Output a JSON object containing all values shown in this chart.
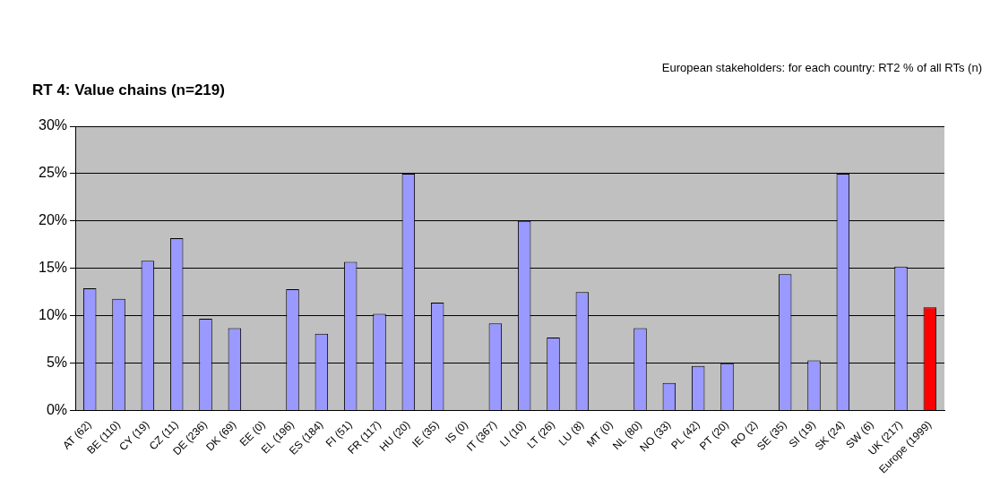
{
  "chart_data": {
    "type": "bar",
    "title": "RT 4: Value chains (n=219)",
    "annotations": [
      "European stakeholders: for each country: RT2 % of all RTs (n)"
    ],
    "categories": [
      "AT (62)",
      "BE (110)",
      "CY (19)",
      "CZ (11)",
      "DE (236)",
      "DK (69)",
      "EE (0)",
      "EL (196)",
      "ES (184)",
      "FI (51)",
      "FR (117)",
      "HU (20)",
      "IE (35)",
      "IS (0)",
      "IT (367)",
      "LI (10)",
      "LT (26)",
      "LU (8)",
      "MT (0)",
      "NL (80)",
      "NO (33)",
      "PL (42)",
      "PT (20)",
      "RO (2)",
      "SE (35)",
      "SI (19)",
      "SK (24)",
      "SW (6)",
      "UK (217)",
      "Europe (1999)"
    ],
    "values": [
      12.9,
      11.8,
      15.8,
      18.2,
      9.7,
      8.7,
      0,
      12.8,
      8.1,
      15.7,
      10.2,
      25,
      11.4,
      0,
      9.2,
      20,
      7.7,
      12.5,
      0,
      8.7,
      2.9,
      4.7,
      5.0,
      0,
      14.4,
      5.3,
      25,
      0,
      15.2,
      10.9
    ],
    "colors": [
      "#9999ff",
      "#9999ff",
      "#9999ff",
      "#9999ff",
      "#9999ff",
      "#9999ff",
      "#9999ff",
      "#9999ff",
      "#9999ff",
      "#9999ff",
      "#9999ff",
      "#9999ff",
      "#9999ff",
      "#9999ff",
      "#9999ff",
      "#9999ff",
      "#9999ff",
      "#9999ff",
      "#9999ff",
      "#9999ff",
      "#9999ff",
      "#9999ff",
      "#9999ff",
      "#9999ff",
      "#9999ff",
      "#9999ff",
      "#9999ff",
      "#9999ff",
      "#9999ff",
      "#ff0000"
    ],
    "ylim": [
      0,
      30
    ],
    "yticks": [
      {
        "value": 0,
        "label": "0%"
      },
      {
        "value": 5,
        "label": "5%"
      },
      {
        "value": 10,
        "label": "10%"
      },
      {
        "value": 15,
        "label": "15%"
      },
      {
        "value": 20,
        "label": "20%"
      },
      {
        "value": 25,
        "label": "25%"
      },
      {
        "value": 30,
        "label": "30%"
      }
    ],
    "grid": "y",
    "legend": false
  }
}
